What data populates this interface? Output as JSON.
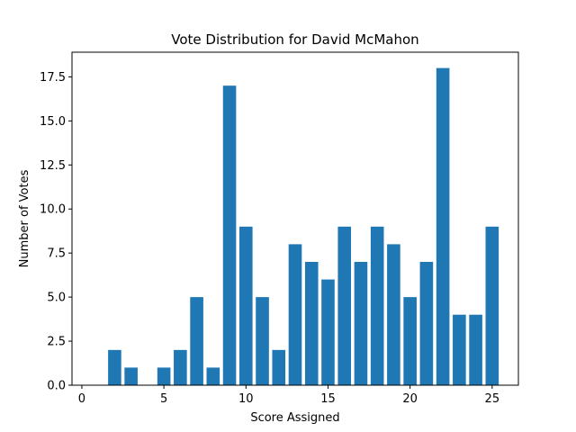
{
  "chart_data": {
    "type": "bar",
    "title": "Vote Distribution for David McMahon",
    "xlabel": "Score Assigned",
    "ylabel": "Number of Votes",
    "x": [
      0,
      1,
      2,
      3,
      4,
      5,
      6,
      7,
      8,
      9,
      10,
      11,
      12,
      13,
      14,
      15,
      16,
      17,
      18,
      19,
      20,
      21,
      22,
      23,
      24,
      25
    ],
    "values": [
      0,
      0,
      2,
      1,
      0,
      1,
      2,
      5,
      1,
      17,
      9,
      5,
      2,
      8,
      7,
      6,
      9,
      7,
      9,
      8,
      5,
      7,
      18,
      4,
      4,
      9
    ],
    "xlim": [
      -0.6,
      26.6
    ],
    "ylim": [
      0,
      18.9
    ],
    "xticks": [
      0,
      5,
      10,
      15,
      20,
      25
    ],
    "xtick_labels": [
      "0",
      "5",
      "10",
      "15",
      "20",
      "25"
    ],
    "yticks": [
      0,
      2.5,
      5,
      7.5,
      10,
      12.5,
      15,
      17.5
    ],
    "ytick_labels": [
      "0.0",
      "2.5",
      "5.0",
      "7.5",
      "10.0",
      "12.5",
      "15.0",
      "17.5"
    ],
    "grid": false,
    "color": "#1f77b4"
  }
}
